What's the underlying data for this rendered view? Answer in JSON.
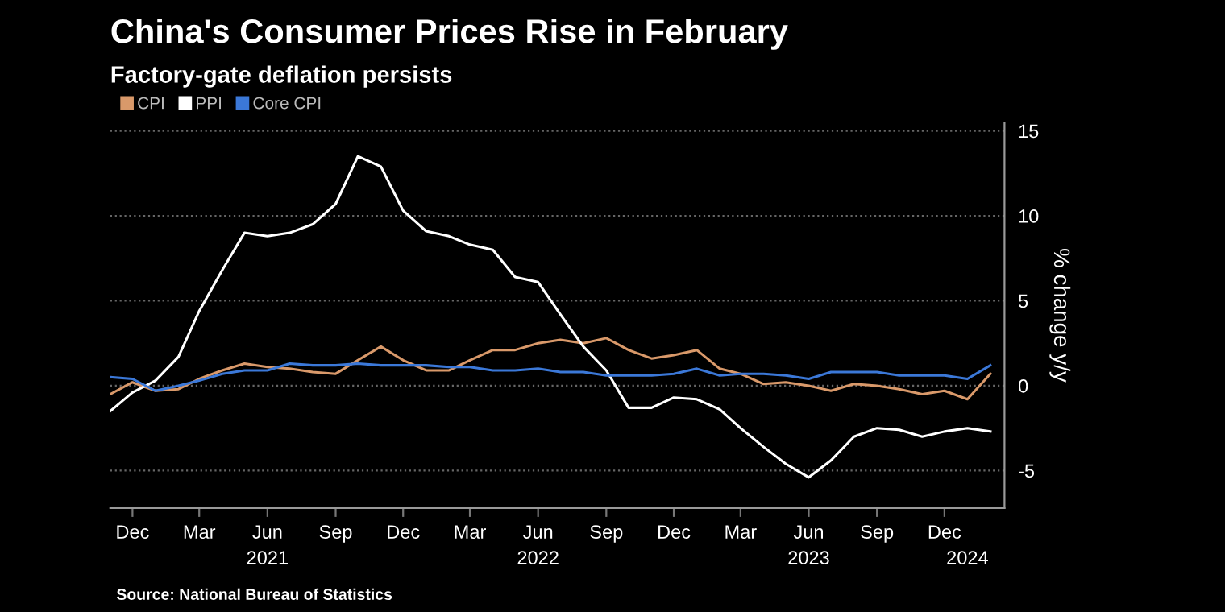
{
  "chart_data": {
    "type": "line",
    "title": "China's Consumer Prices Rise in February",
    "subtitle": "Factory-gate deflation persists",
    "ylabel": "% change y/y",
    "annotations": [
      "Source: National Bureau of Statistics"
    ],
    "x": [
      "2020-11",
      "2020-12",
      "2021-01",
      "2021-02",
      "2021-03",
      "2021-04",
      "2021-05",
      "2021-06",
      "2021-07",
      "2021-08",
      "2021-09",
      "2021-10",
      "2021-11",
      "2021-12",
      "2022-01",
      "2022-02",
      "2022-03",
      "2022-04",
      "2022-05",
      "2022-06",
      "2022-07",
      "2022-08",
      "2022-09",
      "2022-10",
      "2022-11",
      "2022-12",
      "2023-01",
      "2023-02",
      "2023-03",
      "2023-04",
      "2023-05",
      "2023-06",
      "2023-07",
      "2023-08",
      "2023-09",
      "2023-10",
      "2023-11",
      "2023-12",
      "2024-01",
      "2024-02"
    ],
    "series": [
      {
        "name": "CPI",
        "color": "#d9996a",
        "values": [
          -0.5,
          0.2,
          -0.3,
          -0.2,
          0.4,
          0.9,
          1.3,
          1.1,
          1.0,
          0.8,
          0.7,
          1.5,
          2.3,
          1.5,
          0.9,
          0.9,
          1.5,
          2.1,
          2.1,
          2.5,
          2.7,
          2.5,
          2.8,
          2.1,
          1.6,
          1.8,
          2.1,
          1.0,
          0.7,
          0.1,
          0.2,
          0.0,
          -0.3,
          0.1,
          0.0,
          -0.2,
          -0.5,
          -0.3,
          -0.8,
          0.7
        ]
      },
      {
        "name": "PPI",
        "color": "#ffffff",
        "values": [
          -1.5,
          -0.4,
          0.3,
          1.7,
          4.4,
          6.8,
          9.0,
          8.8,
          9.0,
          9.5,
          10.7,
          13.5,
          12.9,
          10.3,
          9.1,
          8.8,
          8.3,
          8.0,
          6.4,
          6.1,
          4.2,
          2.3,
          0.9,
          -1.3,
          -1.3,
          -0.7,
          -0.8,
          -1.4,
          -2.5,
          -3.6,
          -4.6,
          -5.4,
          -4.4,
          -3.0,
          -2.5,
          -2.6,
          -3.0,
          -2.7,
          -2.5,
          -2.7
        ]
      },
      {
        "name": "Core CPI",
        "color": "#3b78d8",
        "values": [
          0.5,
          0.4,
          -0.3,
          0.0,
          0.3,
          0.7,
          0.9,
          0.9,
          1.3,
          1.2,
          1.2,
          1.3,
          1.2,
          1.2,
          1.2,
          1.1,
          1.1,
          0.9,
          0.9,
          1.0,
          0.8,
          0.8,
          0.6,
          0.6,
          0.6,
          0.7,
          1.0,
          0.6,
          0.7,
          0.7,
          0.6,
          0.4,
          0.8,
          0.8,
          0.8,
          0.6,
          0.6,
          0.6,
          0.4,
          1.2
        ]
      }
    ],
    "xlim": [
      "2020-11",
      "2024-02-20"
    ],
    "xticks": [
      {
        "value": "2020-12",
        "label": "Dec"
      },
      {
        "value": "2021-03",
        "label": "Mar"
      },
      {
        "value": "2021-06",
        "label": "Jun"
      },
      {
        "value": "2021-09",
        "label": "Sep"
      },
      {
        "value": "2021-12",
        "label": "Dec"
      },
      {
        "value": "2022-03",
        "label": "Mar"
      },
      {
        "value": "2022-06",
        "label": "Jun"
      },
      {
        "value": "2022-09",
        "label": "Sep"
      },
      {
        "value": "2022-12",
        "label": "Dec"
      },
      {
        "value": "2023-03",
        "label": "Mar"
      },
      {
        "value": "2023-06",
        "label": "Jun"
      },
      {
        "value": "2023-09",
        "label": "Sep"
      },
      {
        "value": "2023-12",
        "label": "Dec"
      }
    ],
    "x2lim": [
      "2020-11",
      "2024-02-20"
    ],
    "x2ticks": [
      {
        "value": "2021-06",
        "label": "2021"
      },
      {
        "value": "2022-06",
        "label": "2022"
      },
      {
        "value": "2023-06",
        "label": "2023"
      },
      {
        "value": "2024-01",
        "label": "2024"
      }
    ],
    "ylim": [
      -7.2,
      15.5
    ],
    "yticks": [
      -5,
      0,
      5,
      10,
      15
    ],
    "grid": "y",
    "legend": "top left",
    "marker": "none",
    "line_style": "solid"
  }
}
